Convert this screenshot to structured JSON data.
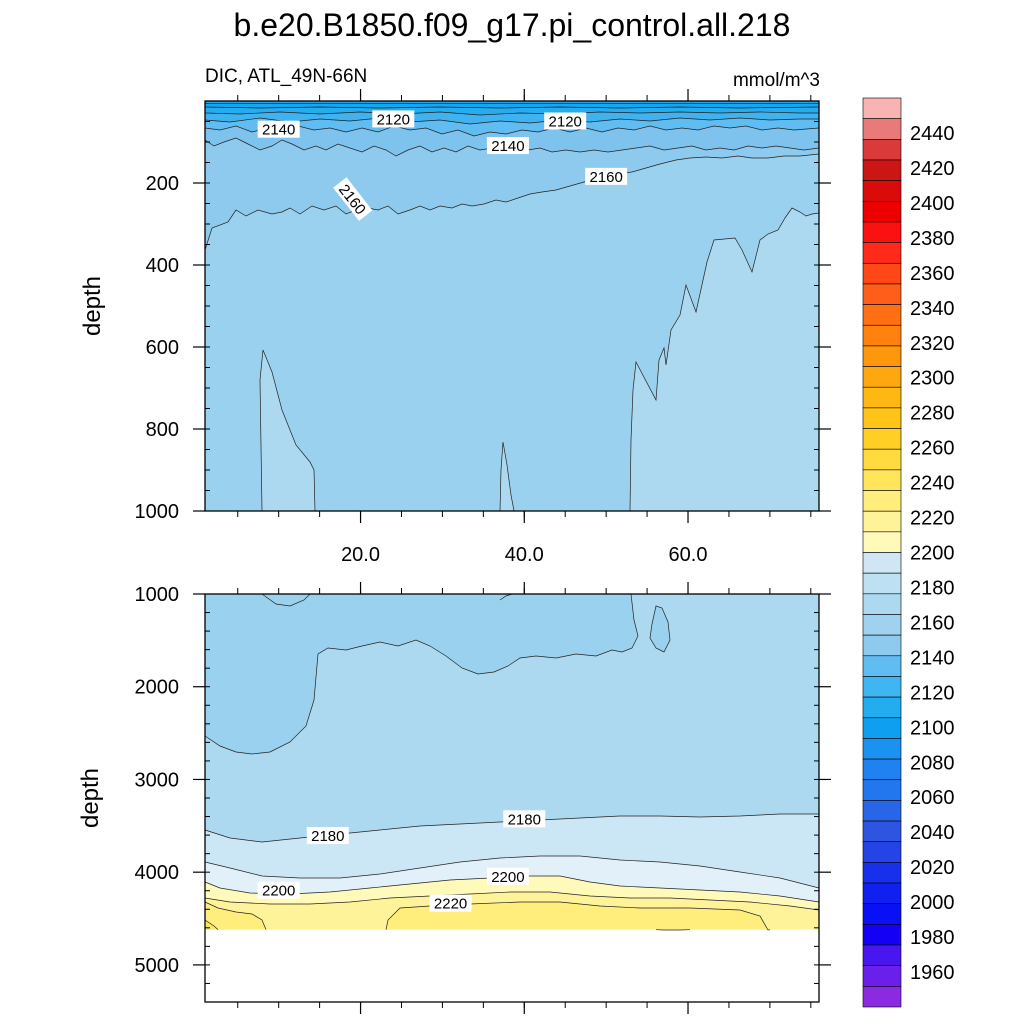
{
  "chart_data": {
    "type": "contour",
    "title": "b.e20.B1850.f09_g17.pi_control.all.218",
    "subtitle_left": "DIC, ATL_49N-66N",
    "subtitle_right": "mmol/m^3",
    "xlabel": "",
    "xlim": [
      1,
      76
    ],
    "x_ticks": [
      "20.0",
      "40.0",
      "60.0"
    ],
    "x_tick_values": [
      20,
      40,
      60
    ],
    "panels": [
      {
        "name": "upper",
        "ylabel": "depth",
        "ylim": [
          0,
          1000
        ],
        "y_ticks": [
          "200",
          "400",
          "600",
          "800",
          "1000"
        ],
        "y_tick_values": [
          200,
          400,
          600,
          800,
          1000
        ],
        "contour_labels": [
          {
            "text": "2140",
            "x": 10,
            "y": 70
          },
          {
            "text": "2120",
            "x": 24,
            "y": 45
          },
          {
            "text": "2140",
            "x": 38,
            "y": 110
          },
          {
            "text": "2120",
            "x": 45,
            "y": 50
          },
          {
            "text": "2160",
            "x": 19,
            "y": 240
          },
          {
            "text": "2160",
            "x": 50,
            "y": 185
          }
        ]
      },
      {
        "name": "lower",
        "ylabel": "depth",
        "ylim": [
          1000,
          5400
        ],
        "y_ticks": [
          "1000",
          "2000",
          "3000",
          "4000",
          "5000"
        ],
        "y_tick_values": [
          1000,
          2000,
          3000,
          4000,
          5000
        ],
        "max_data_depth": 4620,
        "contour_labels": [
          {
            "text": "2180",
            "x": 16,
            "y": 3610
          },
          {
            "text": "2180",
            "x": 40,
            "y": 3430
          },
          {
            "text": "2200",
            "x": 10,
            "y": 4200
          },
          {
            "text": "2200",
            "x": 38,
            "y": 4050
          },
          {
            "text": "2220",
            "x": 31,
            "y": 4340
          }
        ]
      }
    ],
    "colorbar": {
      "labels": [
        "2440",
        "2420",
        "2400",
        "2380",
        "2360",
        "2340",
        "2320",
        "2300",
        "2280",
        "2260",
        "2240",
        "2220",
        "2200",
        "2180",
        "2160",
        "2140",
        "2120",
        "2100",
        "2080",
        "2060",
        "2040",
        "2020",
        "2000",
        "1980",
        "1960"
      ],
      "colors_top_to_bottom": [
        "#f9b3b3",
        "#ea7a7a",
        "#db3a3a",
        "#cc1616",
        "#dc0b0b",
        "#ec0000",
        "#fb1111",
        "#ff2a1a",
        "#ff4717",
        "#ff5e1a",
        "#ff7013",
        "#ff820e",
        "#ff970c",
        "#ffa70e",
        "#ffb812",
        "#ffc417",
        "#ffcf26",
        "#ffdb3f",
        "#ffe55c",
        "#ffed7c",
        "#fff39a",
        "#fff9ba",
        "#cfe7f5",
        "#bde0f3",
        "#acd8f0",
        "#9fd2ef",
        "#8dcaee",
        "#5fbdf1",
        "#3fb6f1",
        "#23acf0",
        "#0f9ff0",
        "#1c92f0",
        "#1f82f0",
        "#2276ee",
        "#2866e8",
        "#2e55e2",
        "#2544e6",
        "#1830ec",
        "#1020f0",
        "#0a10f4",
        "#1400f4",
        "#4a16ee",
        "#6a20ea",
        "#8a2be2"
      ]
    },
    "colors": {
      "c2100": "#0f9ff0",
      "c2120": "#23acf0",
      "c2140": "#5fbdf1",
      "c2160": "#8dcaee",
      "c2170": "#9ad1ee",
      "c2180": "#acd8f0",
      "c2190": "#cbe7f6",
      "c2200": "#fff9ba",
      "c2210": "#fff39a",
      "c2220": "#ffed7c",
      "c2230": "#ffe55c"
    }
  }
}
